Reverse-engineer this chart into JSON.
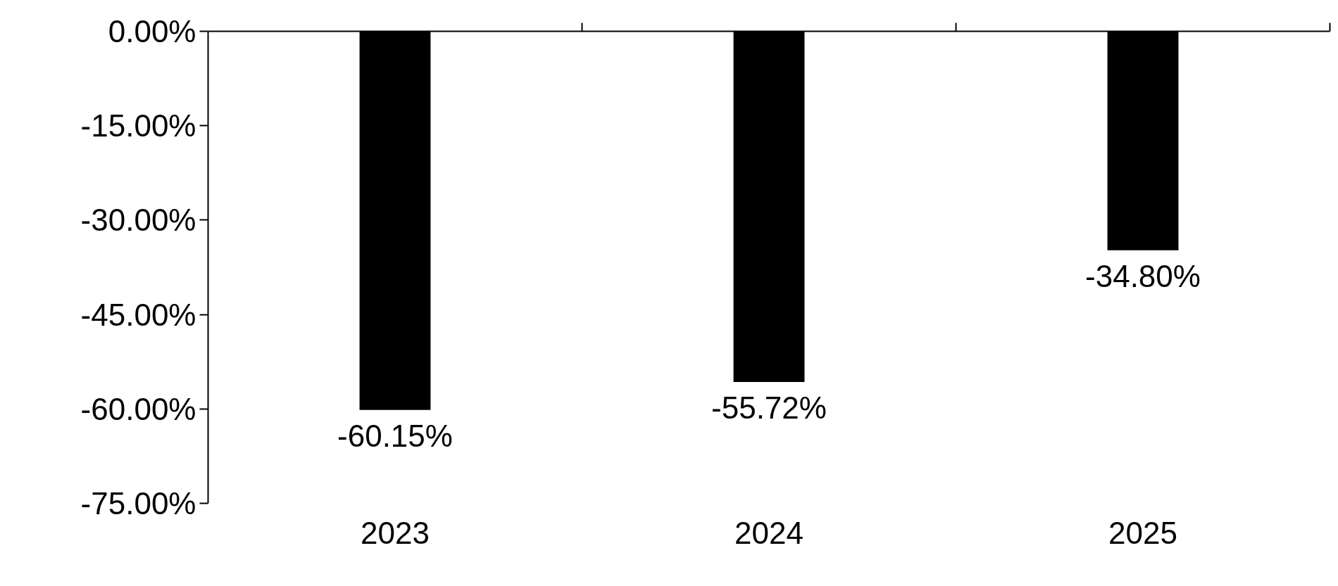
{
  "chart_data": {
    "type": "bar",
    "categories": [
      "2023",
      "2024",
      "2025"
    ],
    "values": [
      -60.15,
      -55.72,
      -34.8
    ],
    "color": "#000000",
    "value_labels": [
      "-60.15%",
      "-55.72%",
      "-34.80%"
    ],
    "ylim": [
      -75,
      0
    ],
    "yticks": [
      {
        "value": 0,
        "label": "0.00%"
      },
      {
        "value": -15,
        "label": "-15.00%"
      },
      {
        "value": -30,
        "label": "-30.00%"
      },
      {
        "value": -45,
        "label": "-45.00%"
      },
      {
        "value": -60,
        "label": "-60.00%"
      },
      {
        "value": -75,
        "label": "-75.00%"
      }
    ],
    "grid": false
  }
}
